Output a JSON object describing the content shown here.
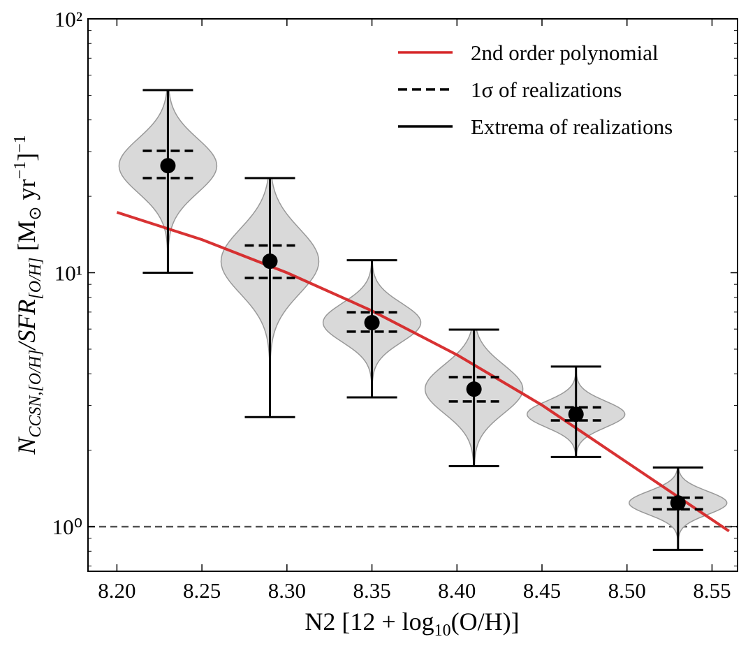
{
  "chart_data": {
    "type": "violin",
    "xlabel": [
      "N2 [12 + log",
      "10",
      "(O/H)]"
    ],
    "ylabel": [
      "N",
      "CCSN,[O/H]",
      "/SFR",
      "[O/H]",
      " [M",
      "⊙",
      " yr",
      "−1",
      "]",
      "−1"
    ],
    "x": [
      8.23,
      8.29,
      8.35,
      8.41,
      8.47,
      8.53
    ],
    "median": [
      26.4,
      11.1,
      6.36,
      3.48,
      2.77,
      1.24
    ],
    "sigma": {
      "name": "1σ of realizations",
      "low": [
        23.6,
        9.54,
        5.86,
        3.11,
        2.62,
        1.17
      ],
      "high": [
        30.2,
        12.8,
        6.99,
        3.88,
        2.95,
        1.3
      ]
    },
    "extrema": {
      "name": "Extrema of realizations",
      "low": [
        10.0,
        2.7,
        3.23,
        1.73,
        1.88,
        0.81
      ],
      "high": [
        52.4,
        23.6,
        11.2,
        5.97,
        4.27,
        1.71
      ]
    },
    "fit": {
      "name": "2nd order polynomial",
      "color": "#d62728",
      "x": [
        8.2,
        8.25,
        8.3,
        8.35,
        8.4,
        8.45,
        8.5,
        8.56
      ],
      "values": [
        17.3,
        13.5,
        10.0,
        7.08,
        4.75,
        3.01,
        1.79,
        0.96
      ]
    },
    "violin_color": "#d9d9d9",
    "reference_line": 1,
    "xlim": [
      8.183,
      8.565
    ],
    "xticks": [
      {
        "value": 8.2,
        "label": "8.20"
      },
      8.25,
      {
        "value": 8.3,
        "label": "8.30"
      },
      8.35,
      {
        "value": 8.4,
        "label": "8.40"
      },
      8.45,
      {
        "value": 8.5,
        "label": "8.50"
      },
      8.55
    ],
    "ylim": [
      0.667,
      100
    ],
    "yscale": "log",
    "yticks": [
      {
        "value": 1,
        "label": "10⁰"
      },
      {
        "value": 10,
        "label": "10¹"
      },
      {
        "value": 100,
        "label": "10²"
      }
    ],
    "yminorticks": [
      0.7,
      0.8,
      0.9,
      2,
      3,
      4,
      5,
      6,
      7,
      8,
      9,
      20,
      30,
      40,
      50,
      60,
      70,
      80,
      90
    ],
    "legend_position": "upper right"
  }
}
